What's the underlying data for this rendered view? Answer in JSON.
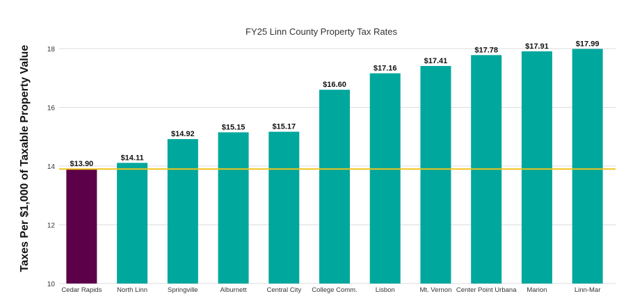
{
  "chart_data": {
    "type": "bar",
    "title": "FY25 Linn County Property Tax Rates",
    "xlabel": "",
    "ylabel": "Taxes Per $1,000 of Taxable Property Value",
    "ylim": [
      10,
      18
    ],
    "yticks": [
      10,
      12,
      14,
      16,
      18
    ],
    "grid": true,
    "categories": [
      "Cedar Rapids",
      "North Linn",
      "Springville",
      "Alburnett",
      "Central City",
      "College Comm.",
      "Lisbon",
      "Mt. Vernon",
      "Center Point Urbana",
      "Marion",
      "Linn-Mar"
    ],
    "values": [
      13.9,
      14.11,
      14.92,
      15.15,
      15.17,
      16.6,
      17.16,
      17.41,
      17.78,
      17.91,
      17.99
    ],
    "data_labels": [
      "$13.90",
      "$14.11",
      "$14.92",
      "$15.15",
      "$15.17",
      "$16.60",
      "$17.16",
      "$17.41",
      "$17.78",
      "$17.91",
      "$17.99"
    ],
    "bar_colors": [
      "#5c0049",
      "#00a79d",
      "#00a79d",
      "#00a79d",
      "#00a79d",
      "#00a79d",
      "#00a79d",
      "#00a79d",
      "#00a79d",
      "#00a79d",
      "#00a79d"
    ],
    "reference_line": {
      "value": 13.9,
      "color": "#f2c41a"
    },
    "colors": {
      "highlight": "#5c0049",
      "bar": "#00a79d",
      "grid": "#dcdcdc"
    }
  }
}
